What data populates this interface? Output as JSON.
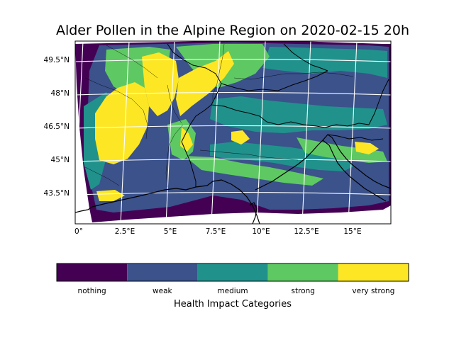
{
  "figure": {
    "title": "Alder Pollen in the Alpine Region on 2020-02-15 20h"
  },
  "map": {
    "lat_ticks": [
      "49.5°N",
      "48°N",
      "46.5°N",
      "45°N",
      "43.5°N"
    ],
    "lon_ticks": [
      "0°",
      "2.5°E",
      "5°E",
      "7.5°E",
      "10°E",
      "12.5°E",
      "15°E"
    ],
    "lon_range_deg": [
      -0.2,
      16.8
    ],
    "lat_range_deg": [
      42.4,
      50.4
    ],
    "gridlines": true
  },
  "colorbar": {
    "title": "Health Impact Categories",
    "categories": [
      "nothing",
      "weak",
      "medium",
      "strong",
      "very strong"
    ],
    "colors": [
      "#440154",
      "#3b528b",
      "#21918c",
      "#5ec962",
      "#fde725"
    ]
  }
}
